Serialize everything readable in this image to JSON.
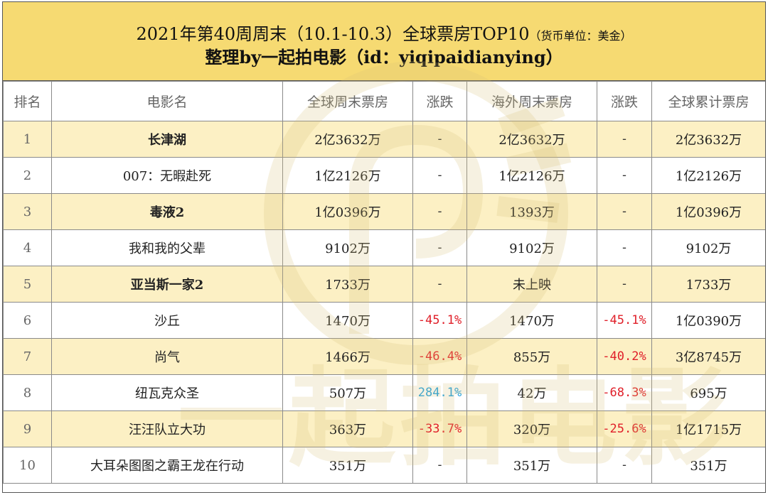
{
  "title": {
    "line1_main": "2021年第40周周末（10.1-10.3）全球票房TOP10",
    "line1_unit": "（货币单位：美金）",
    "line2": "整理by一起拍电影（id：yiqipaidianying）"
  },
  "headers": [
    "排名",
    "电影名",
    "全球周末票房",
    "涨跌",
    "海外周末票房",
    "涨跌",
    "全球累计票房"
  ],
  "rows": [
    {
      "rank": "1",
      "movie": "长津湖",
      "global_weekend": "2亿3632万",
      "global_change": "-",
      "overseas_weekend": "2亿3632万",
      "overseas_change": "-",
      "cumulative": "2亿3632万"
    },
    {
      "rank": "2",
      "movie": "007：无暇赴死",
      "global_weekend": "1亿2126万",
      "global_change": "-",
      "overseas_weekend": "1亿2126万",
      "overseas_change": "-",
      "cumulative": "1亿2126万"
    },
    {
      "rank": "3",
      "movie": "毒液2",
      "global_weekend": "1亿0396万",
      "global_change": "-",
      "overseas_weekend": "1393万",
      "overseas_change": "-",
      "cumulative": "1亿0396万"
    },
    {
      "rank": "4",
      "movie": "我和我的父辈",
      "global_weekend": "9102万",
      "global_change": "-",
      "overseas_weekend": "9102万",
      "overseas_change": "-",
      "cumulative": "9102万"
    },
    {
      "rank": "5",
      "movie": "亚当斯一家2",
      "global_weekend": "1733万",
      "global_change": "-",
      "overseas_weekend": "未上映",
      "overseas_change": "-",
      "cumulative": "1733万"
    },
    {
      "rank": "6",
      "movie": "沙丘",
      "global_weekend": "1470万",
      "global_change": "-45.1%",
      "overseas_weekend": "1470万",
      "overseas_change": "-45.1%",
      "cumulative": "1亿0390万"
    },
    {
      "rank": "7",
      "movie": "尚气",
      "global_weekend": "1466万",
      "global_change": "-46.4%",
      "overseas_weekend": "855万",
      "overseas_change": "-40.2%",
      "cumulative": "3亿8745万"
    },
    {
      "rank": "8",
      "movie": "纽瓦克众圣",
      "global_weekend": "507万",
      "global_change": "284.1%",
      "overseas_weekend": "42万",
      "overseas_change": "-68.3%",
      "cumulative": "695万"
    },
    {
      "rank": "9",
      "movie": "汪汪队立大功",
      "global_weekend": "363万",
      "global_change": "-33.7%",
      "overseas_weekend": "320万",
      "overseas_change": "-25.6%",
      "cumulative": "1亿1715万"
    },
    {
      "rank": "10",
      "movie": "大耳朵图图之霸王龙在行动",
      "global_weekend": "351万",
      "global_change": "-",
      "overseas_weekend": "351万",
      "overseas_change": "-",
      "cumulative": "351万"
    }
  ],
  "watermark": "一起拍电影",
  "colors": {
    "header_bg": "#f6da72",
    "odd_row_bg": "#fceebc",
    "negative": "#e0202a",
    "positive": "#1ea0e0"
  }
}
